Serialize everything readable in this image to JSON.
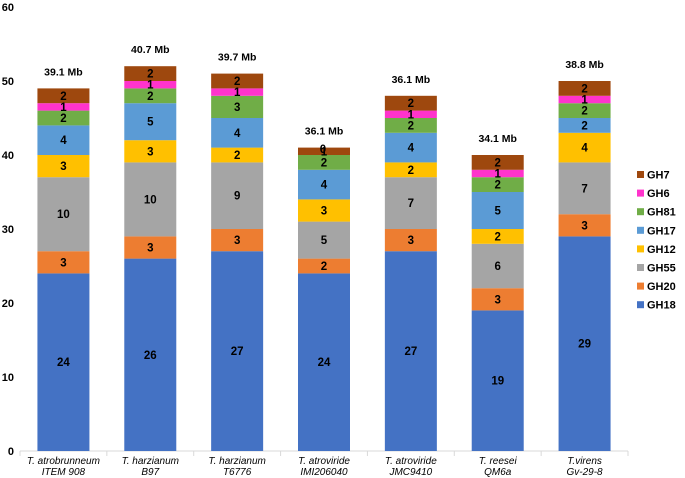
{
  "chart_data": {
    "type": "bar",
    "stacked": true,
    "title": "",
    "xlabel": "",
    "ylabel": "",
    "ylim": [
      0,
      60
    ],
    "yticks": [
      0,
      10,
      20,
      30,
      40,
      50,
      60
    ],
    "grid": false,
    "legend_position": "right",
    "categories": [
      [
        "T. atrobrunneum",
        "ITEM 908"
      ],
      [
        "T. harzianum",
        "B97"
      ],
      [
        "T. harzianum",
        "T6776"
      ],
      [
        "T. atroviride",
        "IMI206040"
      ],
      [
        "T. atroviride",
        "JMC9410"
      ],
      [
        "T. reesei",
        "QM6a"
      ],
      [
        "T.virens",
        "Gv-29-8"
      ]
    ],
    "totals": [
      "39.1 Mb",
      "40.7 Mb",
      "39.7 Mb",
      "36.1 Mb",
      "36.1 Mb",
      "34.1 Mb",
      "38.8 Mb"
    ],
    "series": [
      {
        "name": "GH18",
        "color": "#4472C4",
        "values": [
          24,
          26,
          27,
          24,
          27,
          19,
          29
        ]
      },
      {
        "name": "GH20",
        "color": "#ED7D31",
        "values": [
          3,
          3,
          3,
          2,
          3,
          3,
          3
        ]
      },
      {
        "name": "GH55",
        "color": "#A5A5A5",
        "values": [
          10,
          10,
          9,
          5,
          7,
          6,
          7
        ]
      },
      {
        "name": "GH12",
        "color": "#FFC000",
        "values": [
          3,
          3,
          2,
          3,
          2,
          2,
          4
        ]
      },
      {
        "name": "GH17",
        "color": "#5B9BD5",
        "values": [
          4,
          5,
          4,
          4,
          4,
          5,
          2
        ]
      },
      {
        "name": "GH81",
        "color": "#70AD47",
        "values": [
          2,
          2,
          3,
          2,
          2,
          2,
          2
        ]
      },
      {
        "name": "GH6",
        "color": "#FF33CC",
        "values": [
          1,
          1,
          1,
          0,
          1,
          1,
          1
        ]
      },
      {
        "name": "GH7",
        "color": "#9E480E",
        "values": [
          2,
          2,
          2,
          1,
          2,
          2,
          2
        ]
      }
    ],
    "segment_labels": [
      [
        "24",
        "26",
        "27",
        "24",
        "27",
        "19",
        "29"
      ],
      [
        "3",
        "3",
        "3",
        "2",
        "3",
        "3",
        "3"
      ],
      [
        "10",
        "10",
        "9",
        "5",
        "7",
        "6",
        "7"
      ],
      [
        "3",
        "3",
        "2",
        "3",
        "2",
        "2",
        "4"
      ],
      [
        "4",
        "5",
        "4",
        "4",
        "4",
        "5",
        "2"
      ],
      [
        "2",
        "2",
        "3",
        "2",
        "2",
        "2",
        "2"
      ],
      [
        "1",
        "1",
        "1",
        "0",
        "1",
        "1",
        "1"
      ],
      [
        "2",
        "2",
        "2",
        "1",
        "2",
        "2",
        "2"
      ]
    ],
    "legend_order": [
      "GH7",
      "GH6",
      "GH81",
      "GH17",
      "GH12",
      "GH55",
      "GH20",
      "GH18"
    ]
  }
}
